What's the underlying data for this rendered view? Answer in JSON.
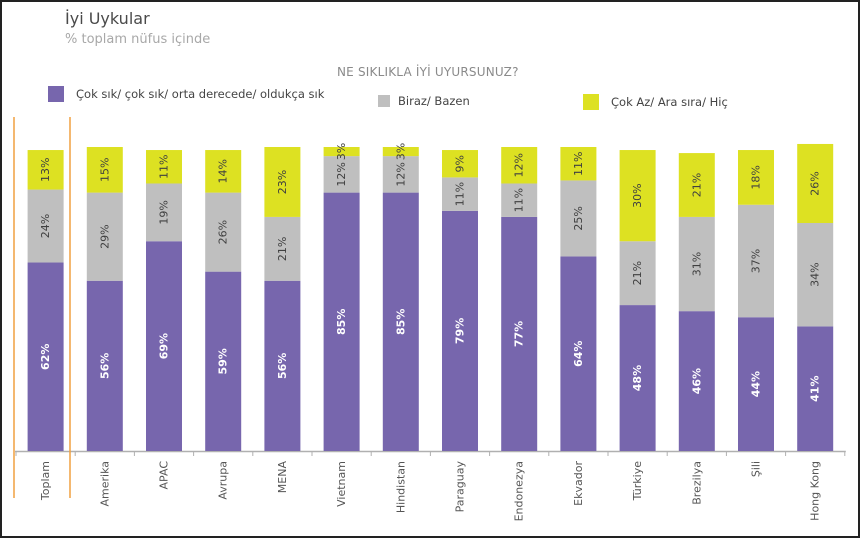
{
  "chart_data": {
    "type": "bar",
    "stacked": true,
    "title": "İyi Uykular",
    "subtitle": "% toplam nüfus içinde",
    "chart_title": "NE SIKLIKLA İYİ UYURSUNUZ?",
    "xlabel": "",
    "ylabel": "",
    "ylim": [
      0,
      100
    ],
    "grid": false,
    "legend_position": "top",
    "categories": [
      "Toplam",
      "Amerika",
      "APAC",
      "Avrupa",
      "MENA",
      "Vietnam",
      "Hindistan",
      "Paraguay",
      "Endonezya",
      "Ekvador",
      "Türkiye",
      "Brezilya",
      "Şili",
      "Hong Kong"
    ],
    "highlighted_category": "Toplam",
    "series": [
      {
        "name": "Çok sık/ çok sık/ orta derecede/ oldukça sık",
        "color": "#7766ad",
        "label_color": "#ffffff",
        "values": [
          62,
          56,
          69,
          59,
          56,
          85,
          85,
          79,
          77,
          64,
          48,
          46,
          44,
          41
        ]
      },
      {
        "name": "Biraz/ Bazen",
        "color": "#bfbfbf",
        "label_color": "#404040",
        "values": [
          24,
          29,
          19,
          26,
          21,
          12,
          12,
          11,
          11,
          25,
          21,
          31,
          37,
          34
        ]
      },
      {
        "name": "Çok Az/ Ara sıra/ Hiç",
        "color": "#dde122",
        "label_color": "#404040",
        "values": [
          13,
          15,
          11,
          14,
          23,
          3,
          3,
          9,
          12,
          11,
          30,
          21,
          18,
          26
        ]
      }
    ],
    "value_suffix": "%"
  },
  "colors": {
    "highlight_line": "#f0a040",
    "axis": "#b0b0b0"
  }
}
